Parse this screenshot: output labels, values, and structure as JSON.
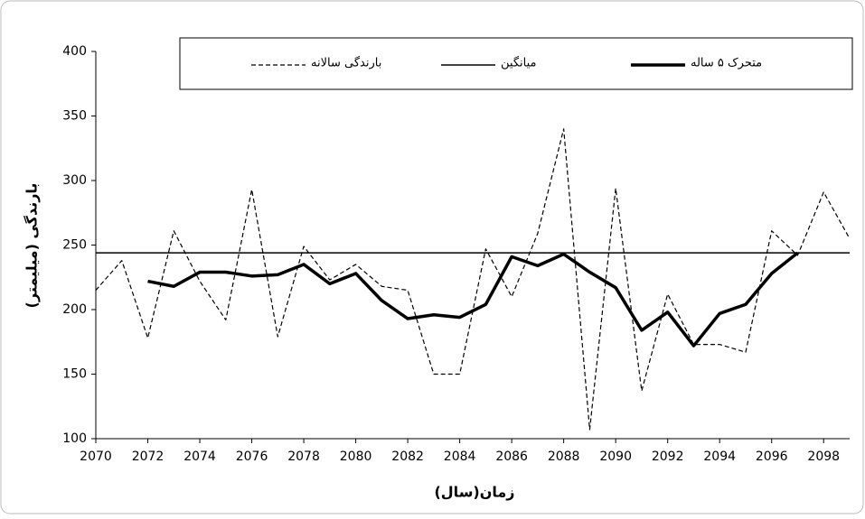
{
  "chart_data": {
    "type": "line",
    "x_label": "زمان(سال)",
    "y_label": "بارندگی (میلیمتر)",
    "x": [
      2070,
      2071,
      2072,
      2073,
      2074,
      2075,
      2076,
      2077,
      2078,
      2079,
      2080,
      2081,
      2082,
      2083,
      2084,
      2085,
      2086,
      2087,
      2088,
      2089,
      2090,
      2091,
      2092,
      2093,
      2094,
      2095,
      2096,
      2097,
      2098,
      2099
    ],
    "series": [
      {
        "name": "بارندگی سالانه",
        "color": "#000000",
        "line_style": "dashed",
        "line_width": 1.2,
        "values": [
          215,
          238,
          178,
          261,
          222,
          192,
          293,
          179,
          249,
          223,
          235,
          218,
          215,
          150,
          150,
          247,
          210,
          259,
          340,
          107,
          294,
          137,
          212,
          173,
          173,
          167,
          261,
          242,
          291,
          255
        ]
      },
      {
        "name": "میانگین",
        "color": "#000000",
        "line_style": "solid",
        "line_width": 1.5,
        "values": [
          244,
          244,
          244,
          244,
          244,
          244,
          244,
          244,
          244,
          244,
          244,
          244,
          244,
          244,
          244,
          244,
          244,
          244,
          244,
          244,
          244,
          244,
          244,
          244,
          244,
          244,
          244,
          244,
          244,
          244
        ]
      },
      {
        "name": "متحرک ۵ ساله",
        "color": "#000000",
        "line_style": "solid",
        "line_width": 3.5,
        "values": [
          null,
          null,
          222,
          218,
          229,
          229,
          226,
          227,
          235,
          220,
          228,
          207,
          193,
          196,
          194,
          204,
          241,
          234,
          243,
          229,
          217,
          184,
          198,
          172,
          197,
          204,
          228,
          244,
          null,
          null
        ]
      }
    ],
    "xlim": [
      2070,
      2099
    ],
    "xticks": [
      2070,
      2072,
      2074,
      2076,
      2078,
      2080,
      2082,
      2084,
      2086,
      2088,
      2090,
      2092,
      2094,
      2096,
      2098
    ],
    "ylim": [
      100,
      400
    ],
    "yticks": [
      100,
      150,
      200,
      250,
      300,
      350,
      400
    ],
    "grid": false
  }
}
